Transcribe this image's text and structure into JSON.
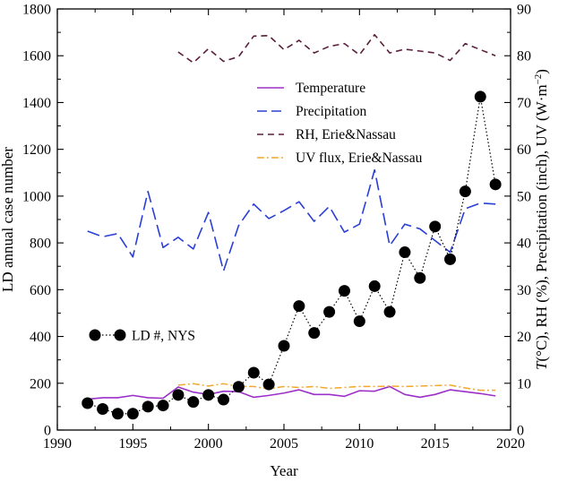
{
  "chart_data": {
    "type": "line",
    "x_axis": {
      "label": "Year",
      "range": [
        1990,
        2020
      ],
      "ticks": [
        "1990",
        "1995",
        "2000",
        "2005",
        "2010",
        "2015",
        "2020"
      ]
    },
    "y_axis_left": {
      "label": "LD annual case number",
      "range": [
        0,
        1800
      ],
      "ticks": [
        "0",
        "200",
        "400",
        "600",
        "800",
        "1000",
        "1200",
        "1400",
        "1600",
        "1800"
      ]
    },
    "y_axis_right": {
      "label_parts": [
        "T",
        "(°C), RH (%), Precipitation (inch), UV (W·m",
        "−2",
        ")"
      ],
      "range": [
        0,
        90
      ],
      "ticks": [
        "0",
        "10",
        "20",
        "30",
        "40",
        "50",
        "60",
        "70",
        "80",
        "90"
      ]
    },
    "series": [
      {
        "name": "Temperature",
        "axis": "right",
        "style": "solid",
        "color": "#9b30c8",
        "x": [
          1992,
          1993,
          1994,
          1995,
          1996,
          1997,
          1998,
          1999,
          2000,
          2001,
          2002,
          2003,
          2004,
          2005,
          2006,
          2007,
          2008,
          2009,
          2010,
          2011,
          2012,
          2013,
          2014,
          2015,
          2016,
          2017,
          2018,
          2019
        ],
        "values": [
          6.6,
          6.9,
          6.9,
          7.4,
          6.9,
          6.8,
          9.2,
          8.1,
          7.6,
          8.3,
          8.2,
          7.0,
          7.4,
          7.9,
          8.6,
          7.6,
          7.6,
          7.2,
          8.4,
          8.3,
          9.3,
          7.6,
          7.0,
          7.6,
          8.6,
          8.2,
          7.8,
          7.3
        ]
      },
      {
        "name": "Precipitation",
        "axis": "right",
        "style": "dashed",
        "color": "#2a3fd6",
        "x": [
          1992,
          1993,
          1994,
          1995,
          1996,
          1997,
          1998,
          1999,
          2000,
          2001,
          2002,
          2003,
          2004,
          2005,
          2006,
          2007,
          2008,
          2009,
          2010,
          2011,
          2012,
          2013,
          2014,
          2015,
          2016,
          2017,
          2018,
          2019
        ],
        "values": [
          42.5,
          41.3,
          42.0,
          37.0,
          51.0,
          39.0,
          41.2,
          38.7,
          46.5,
          34.0,
          43.7,
          48.3,
          45.2,
          46.9,
          48.8,
          44.6,
          47.8,
          42.3,
          44.0,
          55.6,
          39.4,
          44.0,
          43.0,
          40.5,
          38.0,
          47.3,
          48.5,
          48.3
        ]
      },
      {
        "name": "RH, Erie&Nassau",
        "axis": "right",
        "style": "dashed",
        "color": "#5a1f3c",
        "x": [
          1998,
          1999,
          2000,
          2001,
          2002,
          2003,
          2004,
          2005,
          2006,
          2007,
          2008,
          2009,
          2010,
          2011,
          2012,
          2013,
          2014,
          2015,
          2016,
          2017,
          2018,
          2019
        ],
        "values": [
          80.8,
          78.5,
          81.5,
          78.8,
          79.8,
          84.2,
          84.3,
          81.3,
          83.3,
          80.6,
          82.0,
          82.6,
          80.2,
          84.5,
          80.6,
          81.4,
          81.0,
          80.6,
          79.0,
          82.6,
          81.3,
          80.0
        ]
      },
      {
        "name": "UV flux, Erie&Nassau",
        "axis": "right",
        "style": "dashdot",
        "color": "#f0a830",
        "x": [
          1998,
          1999,
          2000,
          2001,
          2002,
          2003,
          2004,
          2005,
          2006,
          2007,
          2008,
          2009,
          2010,
          2011,
          2012,
          2013,
          2014,
          2015,
          2016,
          2017,
          2018,
          2019
        ],
        "values": [
          9.6,
          9.9,
          9.4,
          9.9,
          9.3,
          9.3,
          8.8,
          9.3,
          9.1,
          9.3,
          8.9,
          9.1,
          9.3,
          9.3,
          9.4,
          9.3,
          9.4,
          9.5,
          9.6,
          9.0,
          8.5,
          8.5
        ]
      },
      {
        "name": "LD #, NYS",
        "axis": "left",
        "style": "dotted-markers",
        "color": "#000000",
        "x": [
          1992,
          1993,
          1994,
          1995,
          1996,
          1997,
          1998,
          1999,
          2000,
          2001,
          2002,
          2003,
          2004,
          2005,
          2006,
          2007,
          2008,
          2009,
          2010,
          2011,
          2012,
          2013,
          2014,
          2015,
          2016,
          2017,
          2018,
          2019
        ],
        "values": [
          115,
          90,
          70,
          70,
          100,
          105,
          150,
          120,
          150,
          130,
          185,
          245,
          195,
          360,
          530,
          415,
          505,
          595,
          465,
          615,
          505,
          760,
          650,
          870,
          730,
          1020,
          1425,
          1050
        ]
      }
    ],
    "legend": {
      "position": "top-right",
      "items": [
        "Temperature",
        "Precipitation",
        "RH, Erie&Nassau",
        "UV flux, Erie&Nassau"
      ]
    },
    "inline_legend": {
      "position": "left-middle",
      "label": "LD #, NYS"
    },
    "grid": false
  }
}
